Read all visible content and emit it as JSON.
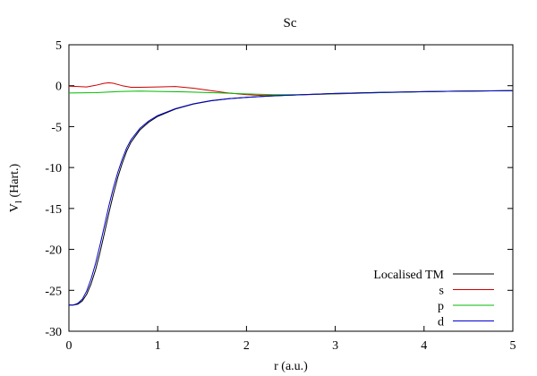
{
  "chart_data": {
    "type": "line",
    "title": "Sc",
    "xlabel": "r (a.u.)",
    "ylabel_main": "V",
    "ylabel_sub": "l",
    "ylabel_rest": " (Hart.)",
    "xlim": [
      0,
      5
    ],
    "ylim": [
      -30,
      5
    ],
    "xticks": [
      0,
      1,
      2,
      3,
      4,
      5
    ],
    "xtick_labels": [
      "0",
      "1",
      "2",
      "3",
      "4",
      "5"
    ],
    "yticks": [
      5,
      0,
      -5,
      -10,
      -15,
      -20,
      -25,
      -30
    ],
    "ytick_labels": [
      "5",
      "0",
      "-5",
      "-10",
      "-15",
      "-20",
      "-25",
      "-30"
    ],
    "legend_position": "bottom-right",
    "series": [
      {
        "name": "Localised TM",
        "color": "#000000",
        "x": [
          0,
          0.05,
          0.1,
          0.15,
          0.2,
          0.25,
          0.3,
          0.35,
          0.4,
          0.45,
          0.5,
          0.55,
          0.6,
          0.65,
          0.7,
          0.8,
          0.9,
          1.0,
          1.2,
          1.4,
          1.6,
          1.8,
          2.0,
          2.25,
          2.5,
          3.0,
          3.5,
          4.0,
          4.5,
          5.0
        ],
        "y": [
          -26.8,
          -26.8,
          -26.7,
          -26.3,
          -25.5,
          -24.2,
          -22.5,
          -20.4,
          -18.0,
          -15.6,
          -13.3,
          -11.2,
          -9.5,
          -8.0,
          -6.9,
          -5.4,
          -4.45,
          -3.75,
          -2.85,
          -2.25,
          -1.85,
          -1.6,
          -1.43,
          -1.28,
          -1.15,
          -0.95,
          -0.83,
          -0.73,
          -0.65,
          -0.6
        ]
      },
      {
        "name": "s",
        "color": "#cc0000",
        "x": [
          0,
          0.1,
          0.2,
          0.3,
          0.4,
          0.45,
          0.5,
          0.6,
          0.7,
          0.8,
          1.0,
          1.2,
          1.4,
          1.6,
          1.8,
          2.0,
          2.2,
          2.5,
          3.0,
          3.5,
          4.0,
          4.5,
          5.0
        ],
        "y": [
          -0.05,
          -0.1,
          -0.15,
          0.05,
          0.3,
          0.35,
          0.3,
          0.0,
          -0.2,
          -0.2,
          -0.15,
          -0.1,
          -0.3,
          -0.6,
          -0.9,
          -1.1,
          -1.2,
          -1.15,
          -1.0,
          -0.85,
          -0.73,
          -0.65,
          -0.6
        ]
      },
      {
        "name": "p",
        "color": "#00bb00",
        "x": [
          0,
          0.3,
          0.6,
          0.8,
          1.0,
          1.3,
          1.6,
          2.0,
          2.3,
          2.6,
          3.0,
          3.5,
          4.0,
          4.5,
          5.0
        ],
        "y": [
          -0.9,
          -0.85,
          -0.7,
          -0.65,
          -0.7,
          -0.75,
          -0.85,
          -1.0,
          -1.1,
          -1.1,
          -0.98,
          -0.85,
          -0.74,
          -0.66,
          -0.6
        ]
      },
      {
        "name": "d",
        "color": "#0000cc",
        "x": [
          0,
          0.05,
          0.1,
          0.15,
          0.2,
          0.25,
          0.3,
          0.35,
          0.4,
          0.45,
          0.5,
          0.55,
          0.6,
          0.65,
          0.7,
          0.8,
          0.9,
          1.0,
          1.2,
          1.4,
          1.6,
          1.8,
          2.0,
          2.25,
          2.5,
          3.0,
          3.5,
          4.0,
          4.5,
          5.0
        ],
        "y": [
          -26.8,
          -26.8,
          -26.6,
          -26.1,
          -25.1,
          -23.6,
          -21.7,
          -19.5,
          -17.1,
          -14.7,
          -12.5,
          -10.6,
          -9.0,
          -7.6,
          -6.6,
          -5.2,
          -4.3,
          -3.65,
          -2.8,
          -2.22,
          -1.83,
          -1.58,
          -1.42,
          -1.27,
          -1.15,
          -0.95,
          -0.83,
          -0.73,
          -0.65,
          -0.6
        ]
      }
    ]
  }
}
